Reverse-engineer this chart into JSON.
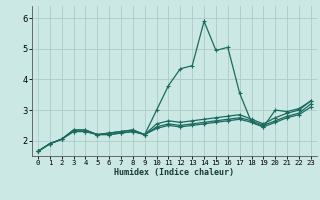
{
  "xlabel": "Humidex (Indice chaleur)",
  "bg_color": "#cce8e4",
  "grid_color": "#aaccc8",
  "line_color": "#1a6b5e",
  "xlim": [
    -0.5,
    23.5
  ],
  "ylim": [
    1.5,
    6.4
  ],
  "xticks": [
    0,
    1,
    2,
    3,
    4,
    5,
    6,
    7,
    8,
    9,
    10,
    11,
    12,
    13,
    14,
    15,
    16,
    17,
    18,
    19,
    20,
    21,
    22,
    23
  ],
  "yticks": [
    2,
    3,
    4,
    5,
    6
  ],
  "lines": [
    {
      "x": [
        0,
        1,
        2,
        3,
        4,
        5,
        6,
        7,
        8,
        9,
        10,
        11,
        12,
        13,
        14,
        15,
        16,
        17,
        18,
        19,
        20,
        21,
        22,
        23
      ],
      "y": [
        1.65,
        1.9,
        2.05,
        2.35,
        2.35,
        2.2,
        2.25,
        2.3,
        2.35,
        2.2,
        3.0,
        3.8,
        4.35,
        4.45,
        5.9,
        4.95,
        5.05,
        3.55,
        2.6,
        2.45,
        3.0,
        2.95,
        3.05,
        3.3
      ]
    },
    {
      "x": [
        0,
        1,
        2,
        3,
        4,
        5,
        6,
        7,
        8,
        9,
        10,
        11,
        12,
        13,
        14,
        15,
        16,
        17,
        18,
        19,
        20,
        21,
        22,
        23
      ],
      "y": [
        1.65,
        1.9,
        2.05,
        2.35,
        2.35,
        2.2,
        2.25,
        2.3,
        2.35,
        2.2,
        2.55,
        2.65,
        2.6,
        2.65,
        2.7,
        2.75,
        2.8,
        2.85,
        2.7,
        2.55,
        2.75,
        2.9,
        3.0,
        3.3
      ]
    },
    {
      "x": [
        0,
        1,
        2,
        3,
        4,
        5,
        6,
        7,
        8,
        9,
        10,
        11,
        12,
        13,
        14,
        15,
        16,
        17,
        18,
        19,
        20,
        21,
        22,
        23
      ],
      "y": [
        1.65,
        1.9,
        2.05,
        2.3,
        2.3,
        2.2,
        2.2,
        2.25,
        2.3,
        2.2,
        2.45,
        2.55,
        2.5,
        2.55,
        2.6,
        2.65,
        2.7,
        2.75,
        2.65,
        2.5,
        2.65,
        2.8,
        2.9,
        3.2
      ]
    },
    {
      "x": [
        0,
        1,
        2,
        3,
        4,
        5,
        6,
        7,
        8,
        9,
        10,
        11,
        12,
        13,
        14,
        15,
        16,
        17,
        18,
        19,
        20,
        21,
        22,
        23
      ],
      "y": [
        1.65,
        1.9,
        2.05,
        2.3,
        2.3,
        2.2,
        2.2,
        2.25,
        2.3,
        2.2,
        2.4,
        2.5,
        2.45,
        2.5,
        2.55,
        2.6,
        2.65,
        2.7,
        2.6,
        2.45,
        2.6,
        2.75,
        2.85,
        3.1
      ]
    }
  ]
}
